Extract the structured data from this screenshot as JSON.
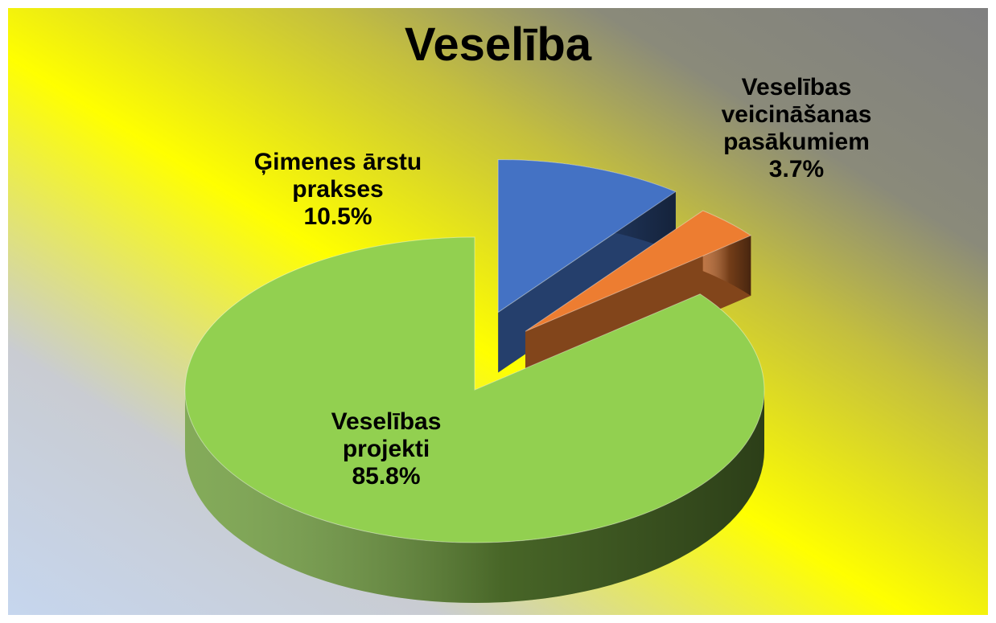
{
  "chart_data": {
    "type": "pie3d",
    "title": "Veselība",
    "categories": [
      "Ģimenes ārstu prakses",
      "Veselības veicināšanas pasākumiem",
      "Veselības projekti"
    ],
    "values": [
      10.5,
      3.7,
      85.8
    ],
    "value_labels": [
      "10.5%",
      "3.7%",
      "85.8%"
    ],
    "colors": [
      "#4472c4",
      "#ed7d31",
      "#92d050"
    ]
  }
}
